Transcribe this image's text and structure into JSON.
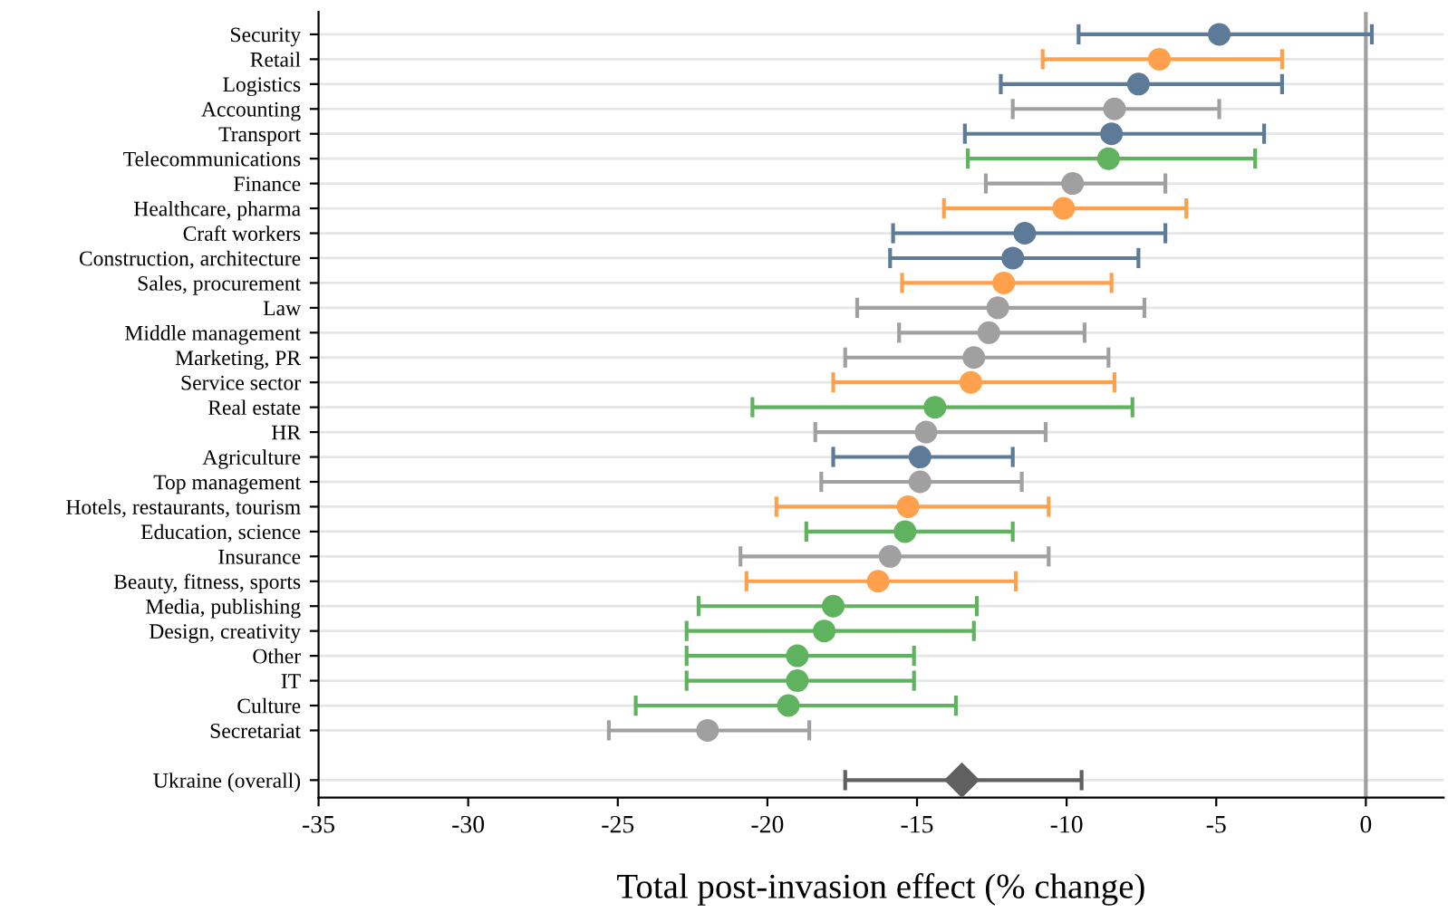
{
  "chart_data": {
    "type": "scatter",
    "orientation": "horizontal",
    "xlabel": "Total post-invasion effect (% change)",
    "categories": [
      "Security",
      "Retail",
      "Logistics",
      "Accounting",
      "Transport",
      "Telecommunications",
      "Finance",
      "Healthcare, pharma",
      "Craft workers",
      "Construction, architecture",
      "Sales, procurement",
      "Law",
      "Middle management",
      "Marketing, PR",
      "Service sector",
      "Real estate",
      "HR",
      "Agriculture",
      "Top management",
      "Hotels, restaurants, tourism",
      "Education, science",
      "Insurance",
      "Beauty, fitness, sports",
      "Media, publishing",
      "Design, creativity",
      "Other",
      "IT",
      "Culture",
      "Secretariat",
      null,
      "Ukraine (overall)"
    ],
    "series": [
      {
        "marker": "circle",
        "colors": [
          "#5d7a99",
          "#ffa04d",
          "#5d7a99",
          "#a0a0a0",
          "#5d7a99",
          "#5fb35f",
          "#a0a0a0",
          "#ffa04d",
          "#5d7a99",
          "#5d7a99",
          "#ffa04d",
          "#a0a0a0",
          "#a0a0a0",
          "#a0a0a0",
          "#ffa04d",
          "#5fb35f",
          "#a0a0a0",
          "#5d7a99",
          "#a0a0a0",
          "#ffa04d",
          "#5fb35f",
          "#a0a0a0",
          "#ffa04d",
          "#5fb35f",
          "#5fb35f",
          "#5fb35f",
          "#5fb35f",
          "#5fb35f",
          "#a0a0a0",
          null,
          null
        ],
        "values": [
          -4.9,
          -6.9,
          -7.6,
          -8.4,
          -8.5,
          -8.6,
          -9.8,
          -10.1,
          -11.4,
          -11.8,
          -12.1,
          -12.3,
          -12.6,
          -13.1,
          -13.2,
          -14.4,
          -14.7,
          -14.9,
          -14.9,
          -15.3,
          -15.4,
          -15.9,
          -16.3,
          -17.8,
          -18.1,
          -19.0,
          -19.0,
          -19.3,
          -22.0,
          null,
          null
        ],
        "errors": [
          [
            -9.6,
            0.2
          ],
          [
            -10.8,
            -2.8
          ],
          [
            -12.2,
            -2.8
          ],
          [
            -11.8,
            -4.9
          ],
          [
            -13.4,
            -3.4
          ],
          [
            -13.3,
            -3.7
          ],
          [
            -12.7,
            -6.7
          ],
          [
            -14.1,
            -6.0
          ],
          [
            -15.8,
            -6.7
          ],
          [
            -15.9,
            -7.6
          ],
          [
            -15.5,
            -8.5
          ],
          [
            -17.0,
            -7.4
          ],
          [
            -15.6,
            -9.4
          ],
          [
            -17.4,
            -8.6
          ],
          [
            -17.8,
            -8.4
          ],
          [
            -20.5,
            -7.8
          ],
          [
            -18.4,
            -10.7
          ],
          [
            -17.8,
            -11.8
          ],
          [
            -18.2,
            -11.5
          ],
          [
            -19.7,
            -10.6
          ],
          [
            -18.7,
            -11.8
          ],
          [
            -20.9,
            -10.6
          ],
          [
            -20.7,
            -11.7
          ],
          [
            -22.3,
            -13.0
          ],
          [
            -22.7,
            -13.1
          ],
          [
            -22.7,
            -15.1
          ],
          [
            -22.7,
            -15.1
          ],
          [
            -24.4,
            -13.7
          ],
          [
            -25.3,
            -18.6
          ],
          null,
          null
        ]
      },
      {
        "marker": "diamond",
        "color": "#606060",
        "values": [
          null,
          null,
          null,
          null,
          null,
          null,
          null,
          null,
          null,
          null,
          null,
          null,
          null,
          null,
          null,
          null,
          null,
          null,
          null,
          null,
          null,
          null,
          null,
          null,
          null,
          null,
          null,
          null,
          null,
          null,
          -13.5
        ],
        "errors": [
          null,
          null,
          null,
          null,
          null,
          null,
          null,
          null,
          null,
          null,
          null,
          null,
          null,
          null,
          null,
          null,
          null,
          null,
          null,
          null,
          null,
          null,
          null,
          null,
          null,
          null,
          null,
          null,
          null,
          null,
          [
            -17.4,
            -9.5
          ]
        ]
      }
    ],
    "xlim": [
      -35,
      2.6
    ],
    "xticks": [
      -35,
      -30,
      -25,
      -20,
      -15,
      -10,
      -5,
      0
    ],
    "ref_lines": [
      {
        "axis": "x",
        "value": 0,
        "color": "#a0a0a0"
      }
    ],
    "grid": "y",
    "legend": false
  }
}
